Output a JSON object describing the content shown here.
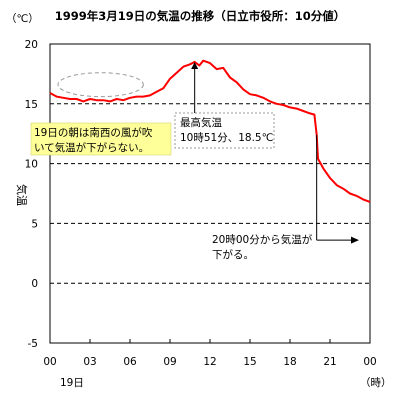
{
  "chart_data": {
    "type": "line",
    "title": "1999年3月19日の気温の推移（日立市役所：10分値）",
    "unit_label": "（℃）",
    "ylabel": "気温",
    "xlabel_unit": "（時）",
    "date_label": "19日",
    "ylim": [
      -5,
      20
    ],
    "y_ticks": [
      -5,
      0,
      5,
      10,
      15,
      20
    ],
    "dashed_gridlines_y": [
      0,
      5,
      10,
      15
    ],
    "xlim_hours": [
      0,
      24
    ],
    "x_ticks": [
      "00",
      "03",
      "06",
      "09",
      "12",
      "15",
      "18",
      "21",
      "00"
    ],
    "series": [
      {
        "color": "#ff0000",
        "x_hours": [
          0,
          0.5,
          1,
          1.5,
          2,
          2.5,
          3,
          3.5,
          4,
          4.5,
          5,
          5.5,
          6,
          6.5,
          7,
          7.5,
          8,
          8.5,
          9,
          9.5,
          10,
          10.5,
          10.85,
          11.2,
          11.5,
          12,
          12.5,
          13,
          13.5,
          14,
          14.5,
          15,
          15.5,
          16,
          16.5,
          17,
          17.5,
          18,
          18.5,
          19,
          19.5,
          19.83,
          20,
          20.1,
          20.3,
          20.5,
          21,
          21.5,
          22,
          22.5,
          23,
          23.5,
          24
        ],
        "y_celsius": [
          15.9,
          15.6,
          15.5,
          15.4,
          15.4,
          15.2,
          15.4,
          15.3,
          15.3,
          15.2,
          15.4,
          15.3,
          15.5,
          15.6,
          15.6,
          15.7,
          16.0,
          16.3,
          17.1,
          17.6,
          18.1,
          18.3,
          18.5,
          18.2,
          18.6,
          18.4,
          17.9,
          18.0,
          17.2,
          16.8,
          16.2,
          15.8,
          15.7,
          15.5,
          15.2,
          15.0,
          14.9,
          14.7,
          14.6,
          14.4,
          14.2,
          14.1,
          12.4,
          10.4,
          10.0,
          9.6,
          8.8,
          8.2,
          7.9,
          7.5,
          7.3,
          7.0,
          6.8
        ]
      }
    ],
    "annotations": {
      "morning": "19日の朝は南西の風が吹いて気温が下がらない。",
      "max_title": "最高気温",
      "max_detail": "10時51分、18.5℃",
      "drop": "20時00分から気温が下がる。"
    },
    "annotation_anchors": {
      "morning_ellipse_hours": [
        0.6,
        7
      ],
      "morning_ellipse_celsius": [
        15.6,
        17.6
      ],
      "max_point": [
        10.85,
        18.5
      ],
      "drop_point": [
        20.0,
        12.4
      ],
      "drop_arrow_y": 3.6
    }
  }
}
